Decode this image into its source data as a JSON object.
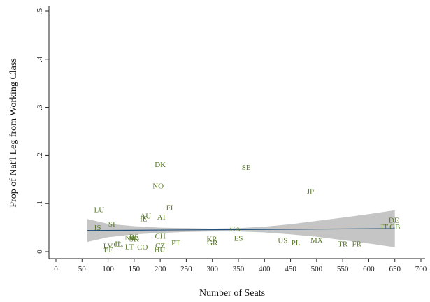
{
  "chart_data": {
    "type": "scatter",
    "xlabel": "Number of Seats",
    "ylabel": "Prop of Nat'l Leg from  Working Class",
    "xlim": [
      0,
      700
    ],
    "ylim": [
      0,
      0.5
    ],
    "x_ticks": [
      0,
      50,
      100,
      150,
      200,
      250,
      300,
      350,
      400,
      450,
      500,
      550,
      600,
      650,
      700
    ],
    "y_ticks": [
      0,
      0.1,
      0.2,
      0.3,
      0.4,
      0.5
    ],
    "y_tick_labels": [
      "0",
      ".1",
      ".2",
      ".3",
      ".4",
      ".5"
    ],
    "colors": {
      "points": "#5a7a2a",
      "fit_line": "#1f4e79",
      "ci_band": "#bbbbbb"
    },
    "points": [
      {
        "label": "DK",
        "x": 200,
        "y": 0.182
      },
      {
        "label": "SE",
        "x": 365,
        "y": 0.176
      },
      {
        "label": "NO",
        "x": 196,
        "y": 0.137
      },
      {
        "label": "JP",
        "x": 488,
        "y": 0.126
      },
      {
        "label": "LU",
        "x": 83,
        "y": 0.088
      },
      {
        "label": "FI",
        "x": 218,
        "y": 0.092
      },
      {
        "label": "AU",
        "x": 172,
        "y": 0.075
      },
      {
        "label": "AT",
        "x": 203,
        "y": 0.073
      },
      {
        "label": "IE",
        "x": 168,
        "y": 0.069
      },
      {
        "label": "SI",
        "x": 107,
        "y": 0.058
      },
      {
        "label": "IS",
        "x": 80,
        "y": 0.051
      },
      {
        "label": "CA",
        "x": 344,
        "y": 0.048
      },
      {
        "label": "DE",
        "x": 648,
        "y": 0.066
      },
      {
        "label": "IT",
        "x": 630,
        "y": 0.052
      },
      {
        "label": "GB",
        "x": 650,
        "y": 0.052
      },
      {
        "label": "NZ",
        "x": 142,
        "y": 0.029
      },
      {
        "label": "NL",
        "x": 150,
        "y": 0.029
      },
      {
        "label": "BE",
        "x": 150,
        "y": 0.031
      },
      {
        "label": "SK",
        "x": 150,
        "y": 0.027
      },
      {
        "label": "CH",
        "x": 200,
        "y": 0.033
      },
      {
        "label": "KR",
        "x": 299,
        "y": 0.027
      },
      {
        "label": "ES",
        "x": 350,
        "y": 0.028
      },
      {
        "label": "US",
        "x": 435,
        "y": 0.024
      },
      {
        "label": "PL",
        "x": 460,
        "y": 0.019
      },
      {
        "label": "MX",
        "x": 500,
        "y": 0.025
      },
      {
        "label": "PT",
        "x": 230,
        "y": 0.019
      },
      {
        "label": "GR",
        "x": 300,
        "y": 0.019
      },
      {
        "label": "IL",
        "x": 120,
        "y": 0.017
      },
      {
        "label": "CL",
        "x": 120,
        "y": 0.015
      },
      {
        "label": "LV",
        "x": 100,
        "y": 0.012
      },
      {
        "label": "LT",
        "x": 141,
        "y": 0.011
      },
      {
        "label": "CO",
        "x": 166,
        "y": 0.01
      },
      {
        "label": "CZ",
        "x": 200,
        "y": 0.013
      },
      {
        "label": "EE",
        "x": 101,
        "y": 0.004
      },
      {
        "label": "HU",
        "x": 199,
        "y": 0.005
      },
      {
        "label": "TR",
        "x": 550,
        "y": 0.017
      },
      {
        "label": "FR",
        "x": 577,
        "y": 0.017
      }
    ],
    "fit_line": {
      "x": [
        60,
        650
      ],
      "y": [
        0.044,
        0.048
      ]
    },
    "ci_band": {
      "x": [
        60,
        100,
        150,
        200,
        250,
        300,
        350,
        400,
        450,
        500,
        550,
        600,
        650
      ],
      "lower": [
        0.02,
        0.03,
        0.036,
        0.039,
        0.041,
        0.042,
        0.042,
        0.04,
        0.036,
        0.031,
        0.024,
        0.017,
        0.009
      ],
      "upper": [
        0.068,
        0.058,
        0.053,
        0.05,
        0.049,
        0.048,
        0.049,
        0.052,
        0.057,
        0.064,
        0.071,
        0.078,
        0.086
      ]
    }
  }
}
